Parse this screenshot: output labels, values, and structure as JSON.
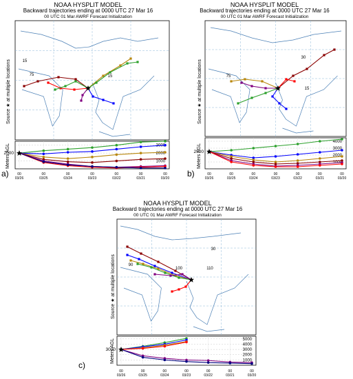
{
  "panels": [
    {
      "id": "a",
      "label": "a)",
      "title": "NOAA HYSPLIT MODEL",
      "subtitle1": "Backward trajectories ending at 0000 UTC 27 Mar 16",
      "subtitle2": "00 UTC 01 Mar   AWRF  Forecast Initialization",
      "ylabel_map": "Source ★ at multiple locations",
      "ylabel_height": "Meters AGL",
      "start_height": "2000",
      "height_ticks": [
        "3000",
        "2000",
        "1000"
      ],
      "lat_labels": [
        "15",
        "15"
      ],
      "lon_labels": [
        "75"
      ],
      "date_labels": [
        "03/26",
        "03/25",
        "03/24",
        "03/23",
        "03/22",
        "03/21",
        "03/20"
      ],
      "hour_labels": [
        "00",
        "00",
        "00",
        "00",
        "00",
        "00",
        "00"
      ]
    },
    {
      "id": "b",
      "label": "b)",
      "title": "NOAA HYSPLIT MODEL",
      "subtitle1": "Backward trajectories ending at 0000 UTC 27 Mar 16",
      "subtitle2": "00 UTC 01 Mar   AWRF  Forecast Initialization",
      "ylabel_map": "Source ★ at multiple locations",
      "ylabel_height": "Meters AGL",
      "start_height": "2500",
      "height_ticks": [
        "4000",
        "3000",
        "2000",
        "1000"
      ],
      "lat_labels": [
        "30",
        "15"
      ],
      "lon_labels": [
        "75"
      ],
      "date_labels": [
        "03/26",
        "03/25",
        "03/24",
        "03/23",
        "03/22",
        "03/21",
        "03/20"
      ],
      "hour_labels": [
        "00",
        "00",
        "00",
        "00",
        "00",
        "00",
        "00"
      ]
    },
    {
      "id": "c",
      "label": "c)",
      "title": "NOAA HYSPLIT MODEL",
      "subtitle1": "Backward trajectories ending at 0000 UTC 27 Mar 16",
      "subtitle2": "00 UTC 01 Mar   AWRF  Forecast Initialization",
      "ylabel_map": "Source ★ at multiple locations",
      "ylabel_height": "Meters AGL",
      "start_height": "3000",
      "height_ticks": [
        "5000",
        "4000",
        "3000",
        "2000",
        "1000"
      ],
      "lat_labels": [
        "30"
      ],
      "lon_labels": [
        "90",
        "100",
        "110"
      ],
      "date_labels": [
        "03/26",
        "03/25",
        "03/24",
        "03/23",
        "03/22",
        "03/21",
        "03/20"
      ],
      "hour_labels": [
        "00",
        "00",
        "00",
        "00",
        "00",
        "00",
        "00"
      ]
    }
  ],
  "chart_data": [
    {
      "type": "line",
      "panel": "a",
      "x": [
        "03/26",
        "03/25",
        "03/24",
        "03/23",
        "03/22",
        "03/21",
        "03/20"
      ],
      "ylabel": "Meters AGL",
      "ylim": [
        0,
        3500
      ],
      "series": [
        {
          "color": "#2ca02c",
          "values": [
            2000,
            2300,
            2500,
            2700,
            3000,
            3400,
            3500
          ]
        },
        {
          "color": "#0000ff",
          "values": [
            2000,
            1900,
            2100,
            2200,
            2500,
            2800,
            3000
          ]
        },
        {
          "color": "#b8860b",
          "values": [
            2000,
            1500,
            1300,
            1500,
            1800,
            2000,
            2100
          ]
        },
        {
          "color": "#8b0000",
          "values": [
            2000,
            1200,
            900,
            800,
            1000,
            1200,
            1300
          ]
        },
        {
          "color": "#800080",
          "values": [
            2000,
            1000,
            600,
            300,
            200,
            300,
            400
          ]
        },
        {
          "color": "#ff0000",
          "values": [
            2000,
            800,
            400,
            200,
            100,
            200,
            300
          ]
        },
        {
          "color": "#000080",
          "values": [
            2000,
            900,
            500,
            300,
            200,
            100,
            100
          ]
        }
      ]
    },
    {
      "type": "line",
      "panel": "b",
      "x": [
        "03/26",
        "03/25",
        "03/24",
        "03/23",
        "03/22",
        "03/21",
        "03/20"
      ],
      "ylabel": "Meters AGL",
      "ylim": [
        0,
        4500
      ],
      "series": [
        {
          "color": "#2ca02c",
          "values": [
            2500,
            2700,
            3000,
            3300,
            3600,
            4000,
            4300
          ]
        },
        {
          "color": "#0000ff",
          "values": [
            2500,
            2000,
            1600,
            1800,
            2100,
            2400,
            2700
          ]
        },
        {
          "color": "#b8860b",
          "values": [
            2500,
            1800,
            1300,
            1000,
            1200,
            1500,
            1800
          ]
        },
        {
          "color": "#8b0000",
          "values": [
            2500,
            1500,
            1000,
            700,
            800,
            1000,
            1200
          ]
        },
        {
          "color": "#800080",
          "values": [
            2500,
            1200,
            700,
            400,
            500,
            700,
            900
          ]
        },
        {
          "color": "#ff0000",
          "values": [
            2500,
            1000,
            500,
            300,
            300,
            500,
            700
          ]
        }
      ]
    },
    {
      "type": "line",
      "panel": "c",
      "x": [
        "03/26",
        "03/25",
        "03/24",
        "03/23",
        "03/22",
        "03/21",
        "03/20"
      ],
      "ylabel": "Meters AGL",
      "ylim": [
        0,
        5500
      ],
      "series": [
        {
          "color": "#2ca02c",
          "values": [
            3000,
            3600,
            4300,
            5100,
            null,
            null,
            null
          ]
        },
        {
          "color": "#0000ff",
          "values": [
            3000,
            3500,
            4000,
            4800,
            null,
            null,
            null
          ]
        },
        {
          "color": "#b8860b",
          "values": [
            3000,
            3300,
            3800,
            4500,
            null,
            null,
            null
          ]
        },
        {
          "color": "#ff0000",
          "values": [
            3000,
            3200,
            3600,
            4400,
            null,
            null,
            null
          ]
        },
        {
          "color": "#800080",
          "values": [
            3000,
            1800,
            1300,
            1000,
            900,
            600,
            500
          ]
        },
        {
          "color": "#000080",
          "values": [
            3000,
            1500,
            1000,
            700,
            500,
            400,
            300
          ]
        }
      ]
    }
  ]
}
